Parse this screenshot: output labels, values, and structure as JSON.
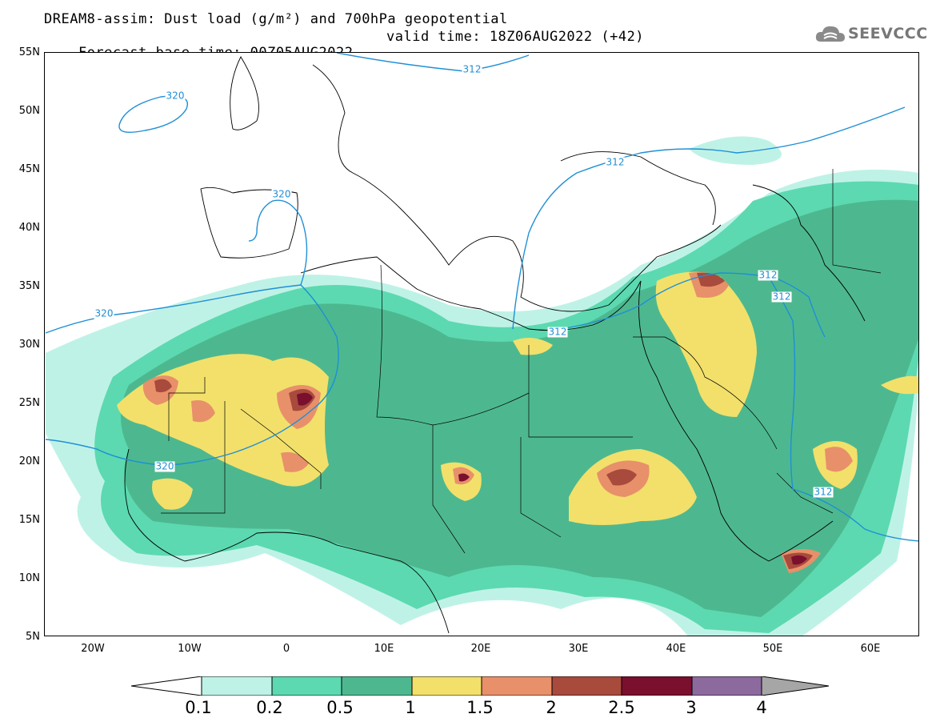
{
  "title": {
    "line1": "DREAM8-assim: Dust load (g/m²) and 700hPa geopotential",
    "base_time": "Forecast base time: 00Z05AUG2022",
    "valid_time": "valid time: 18Z06AUG2022 (+42)"
  },
  "logo": {
    "text": "SEEVCCC",
    "icon": "cloud-icon"
  },
  "axes": {
    "lat_labels": [
      "55N",
      "50N",
      "45N",
      "40N",
      "35N",
      "30N",
      "25N",
      "20N",
      "15N",
      "10N",
      "5N"
    ],
    "lon_labels": [
      "20W",
      "10W",
      "0",
      "10E",
      "20E",
      "30E",
      "40E",
      "50E",
      "60E"
    ],
    "lat_range": [
      5,
      55
    ],
    "lon_range": [
      -25,
      65
    ]
  },
  "contour_labels": [
    "320",
    "320",
    "320",
    "320",
    "312",
    "312",
    "312",
    "312",
    "312",
    "312"
  ],
  "colorbar": {
    "ticks": [
      "0.1",
      "0.2",
      "0.5",
      "1",
      "1.5",
      "2",
      "2.5",
      "3",
      "4"
    ],
    "colors": [
      "#bff2e6",
      "#5cd9b0",
      "#4db88f",
      "#f2e06b",
      "#e8906a",
      "#a84a3c",
      "#7a0f2e",
      "#8c6a9e",
      "#a6a6a6"
    ],
    "low_end_color": "#ffffff",
    "high_end_color": "#a6a6a6"
  },
  "colors": {
    "contour": "#1f8fd6",
    "coast": "#000000"
  }
}
